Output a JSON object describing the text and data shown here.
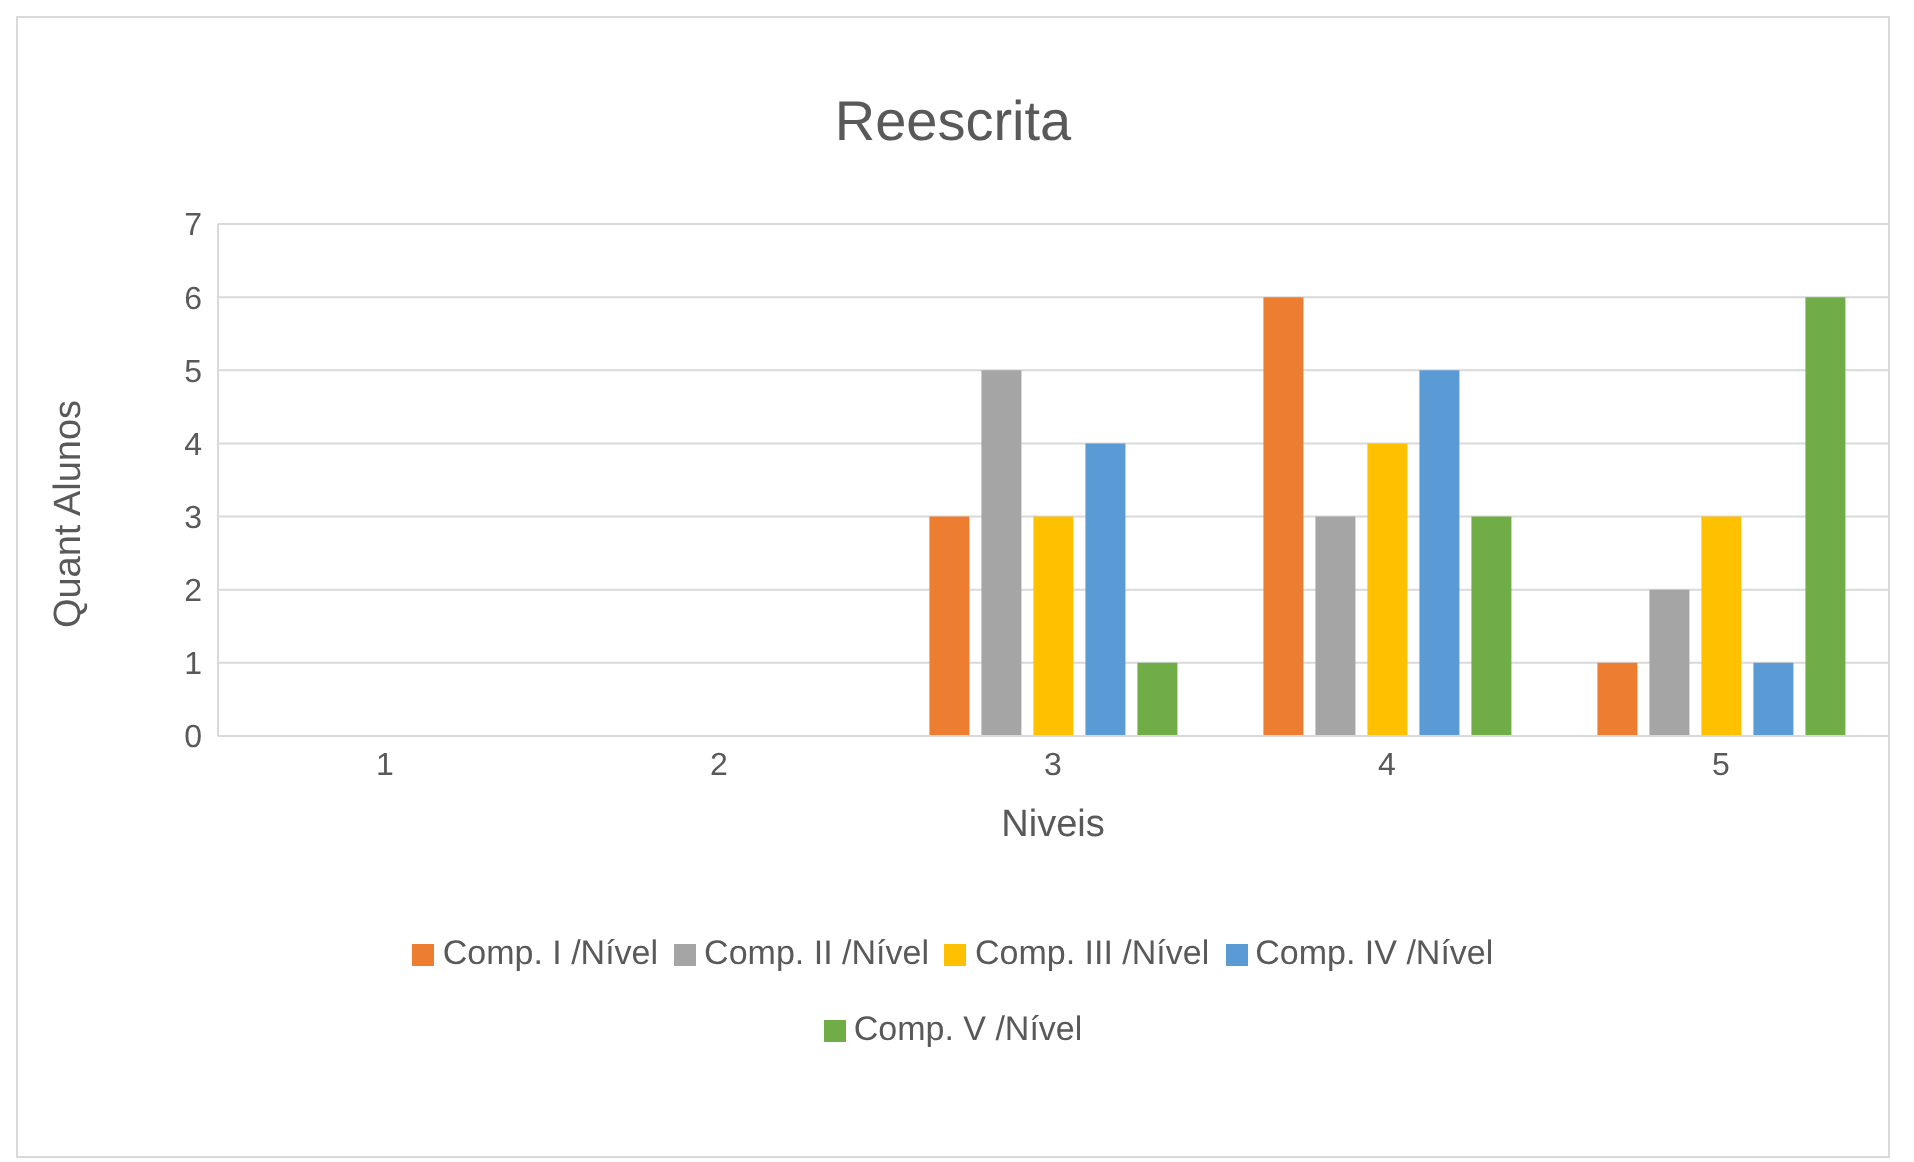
{
  "chart_data": {
    "type": "bar",
    "title": "Reescrita",
    "xlabel": "Niveis",
    "ylabel": "Quant Alunos",
    "categories": [
      "1",
      "2",
      "3",
      "4",
      "5"
    ],
    "series": [
      {
        "name": "Comp. I /Nível",
        "color": "#ed7d31",
        "values": [
          null,
          null,
          3,
          6,
          1
        ]
      },
      {
        "name": "Comp. II /Nível",
        "color": "#a5a5a5",
        "values": [
          null,
          null,
          5,
          3,
          2
        ]
      },
      {
        "name": "Comp. III /Nível",
        "color": "#ffc000",
        "values": [
          null,
          null,
          3,
          4,
          3
        ]
      },
      {
        "name": "Comp. IV /Nível",
        "color": "#5b9bd5",
        "values": [
          null,
          null,
          4,
          5,
          1
        ]
      },
      {
        "name": "Comp. V /Nível",
        "color": "#70ad47",
        "values": [
          null,
          null,
          1,
          3,
          6
        ]
      }
    ],
    "ylim": [
      0,
      7
    ],
    "yticks": [
      0,
      1,
      2,
      3,
      4,
      5,
      6,
      7
    ],
    "grid": "y",
    "legend": "bottom"
  }
}
